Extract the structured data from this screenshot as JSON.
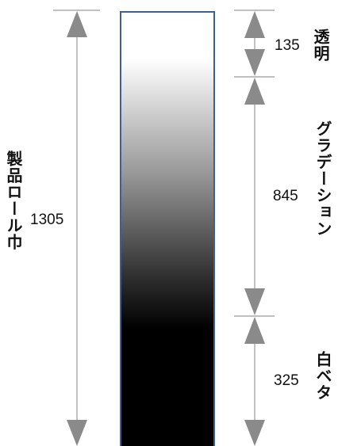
{
  "diagram": {
    "total": {
      "label": "製品ロール巾",
      "value": "1305"
    },
    "segments": [
      {
        "id": "transparent",
        "label": "透明",
        "value": "135"
      },
      {
        "id": "gradation",
        "label": "グラデーション",
        "value": "845"
      },
      {
        "id": "white-solid",
        "label": "白ベタ",
        "value": "325"
      }
    ]
  },
  "colors": {
    "strip_border": "#3f5f8f",
    "arrow": "#8a8a8a",
    "line": "#9a9a9a"
  }
}
